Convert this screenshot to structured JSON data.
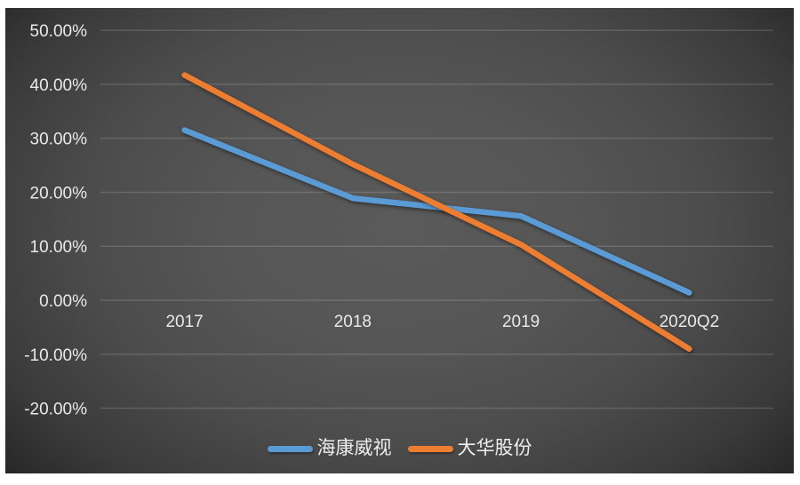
{
  "chart_data": {
    "type": "line",
    "categories": [
      "2017",
      "2018",
      "2019",
      "2020Q2"
    ],
    "series": [
      {
        "id": "hikvision-line",
        "name": "海康威视",
        "color": "#5B9BD5",
        "values": [
          31.5,
          18.9,
          15.6,
          1.4
        ]
      },
      {
        "id": "dahua-line",
        "name": "大华股份",
        "color": "#ED7D31",
        "values": [
          41.7,
          25.2,
          10.3,
          -9.0
        ]
      }
    ],
    "ylim": [
      -20,
      50
    ],
    "y_tick_step": 10,
    "y_ticks": [
      50,
      40,
      30,
      20,
      10,
      0,
      -10,
      -20
    ],
    "y_tick_labels": [
      "50.00%",
      "40.00%",
      "30.00%",
      "20.00%",
      "10.00%",
      "0.00%",
      "-10.00%",
      "-20.00%"
    ],
    "grid": "horizontal-only",
    "x_label_position": "near-zero-axis",
    "legend_position": "bottom-center"
  },
  "colors": {
    "frame_background": "#ffffff",
    "chart_background_center": "#595959",
    "chart_background_edge": "#1b1b1b",
    "gridline": "rgba(255,255,255,0.15)",
    "axis_text": "#e9e9e9",
    "series_blue": "#5B9BD5",
    "series_orange": "#ED7D31"
  }
}
